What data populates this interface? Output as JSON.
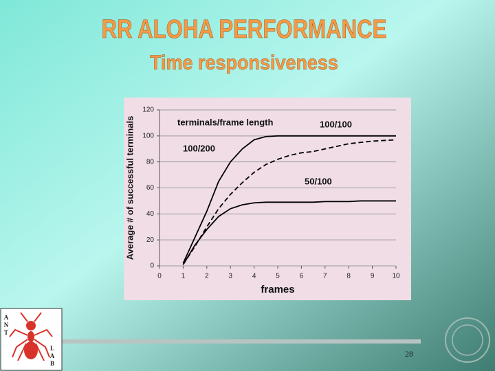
{
  "slide": {
    "title": "RR  ALOHA  PERFORMANCE",
    "subtitle": "Time responsiveness",
    "page_number": "28",
    "logo_left": [
      "A",
      "N",
      "T"
    ],
    "logo_right": [
      "L",
      "A",
      "B"
    ]
  },
  "chart_data": {
    "type": "line",
    "x_label": "frames",
    "y_label": "Average # of successful  terminals",
    "annotation": "terminals/frame length",
    "x": [
      1,
      1.5,
      2,
      2.5,
      3,
      3.5,
      4,
      4.5,
      5,
      5.5,
      6,
      6.5,
      7,
      7.5,
      8,
      8.5,
      9,
      9.5,
      10
    ],
    "series": [
      {
        "name": "100/200",
        "color": "#000000",
        "dash": false,
        "values": [
          2,
          22,
          42,
          65,
          80,
          90,
          97,
          99.5,
          100,
          100,
          100,
          100,
          100,
          100,
          100,
          100,
          100,
          100,
          100
        ]
      },
      {
        "name": "100/100",
        "color": "#000000",
        "dash": true,
        "values": [
          1,
          15,
          30,
          44,
          55,
          64,
          72,
          78,
          82,
          85,
          87,
          88,
          90,
          92,
          94,
          95,
          96,
          96.5,
          97
        ]
      },
      {
        "name": "50/100",
        "color": "#000000",
        "dash": false,
        "values": [
          1,
          16,
          28,
          38,
          44,
          47,
          48.5,
          49,
          49,
          49,
          49,
          49,
          49.5,
          49.5,
          49.5,
          50,
          50,
          50,
          50
        ]
      }
    ],
    "xlim": [
      0,
      10
    ],
    "xticks": [
      0,
      1,
      2,
      3,
      4,
      5,
      6,
      7,
      8,
      9,
      10
    ],
    "ylim": [
      0,
      120
    ],
    "yticks": [
      0,
      20,
      40,
      60,
      80,
      100,
      120
    ],
    "grid": true
  }
}
